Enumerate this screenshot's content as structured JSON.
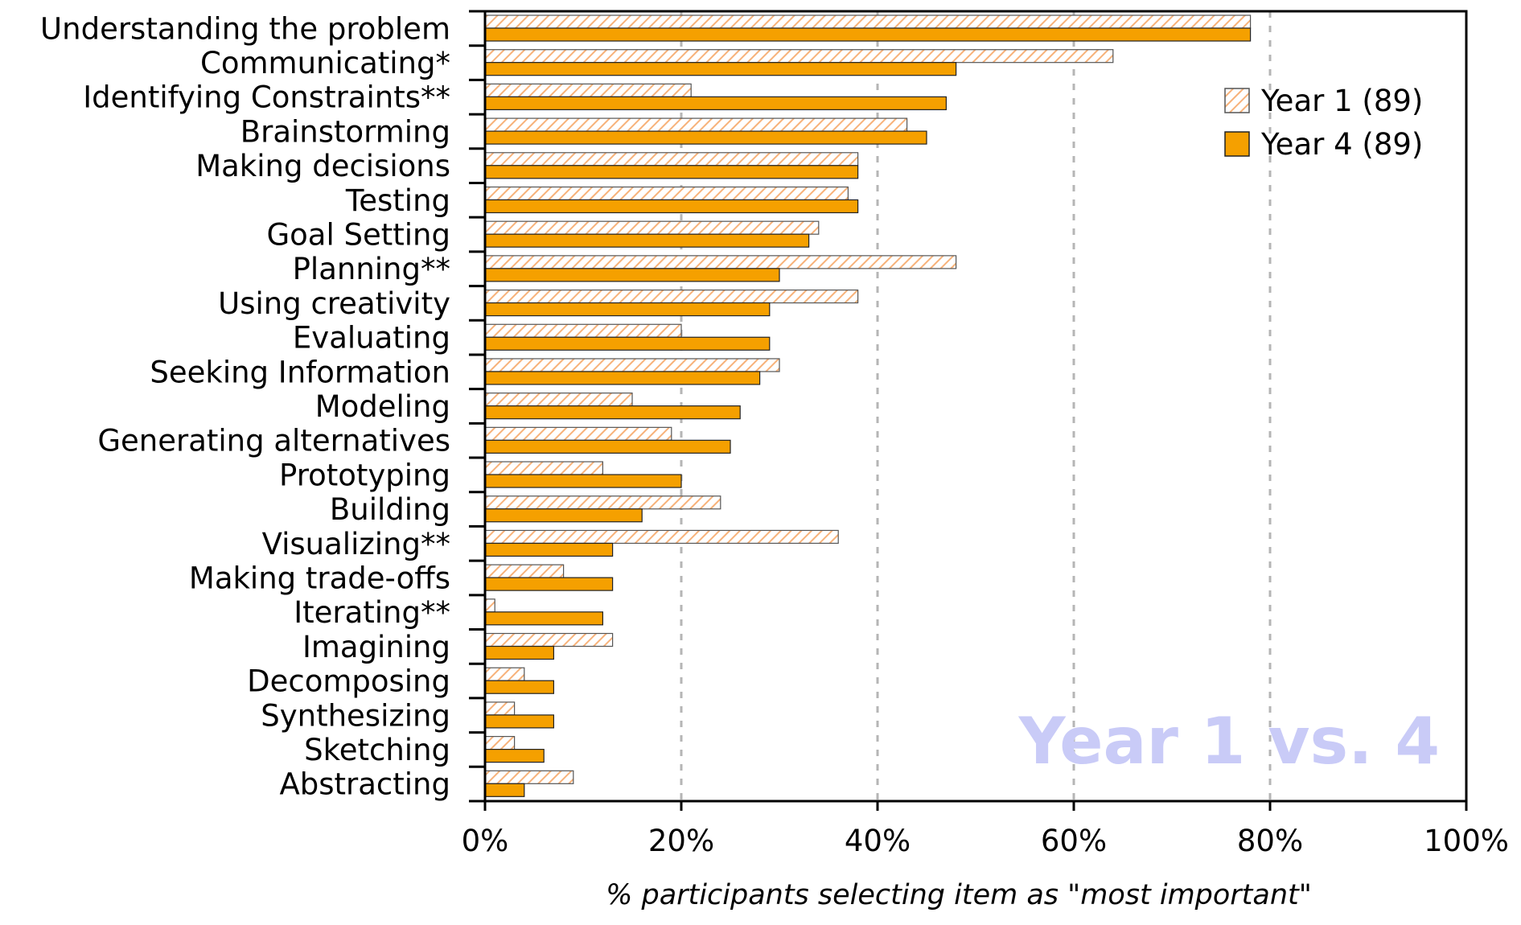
{
  "chart_data": {
    "type": "bar",
    "orientation": "horizontal",
    "categories": [
      "Understanding the problem",
      "Communicating*",
      "Identifying Constraints**",
      "Brainstorming",
      "Making decisions",
      "Testing",
      "Goal Setting",
      "Planning**",
      "Using creativity",
      "Evaluating",
      "Seeking Information",
      "Modeling",
      "Generating alternatives",
      "Prototyping",
      "Building",
      "Visualizing**",
      "Making trade-offs",
      "Iterating**",
      "Imagining",
      "Decomposing",
      "Synthesizing",
      "Sketching",
      "Abstracting"
    ],
    "series": [
      {
        "name": "Year 1 (89)",
        "color": "#f5a623",
        "pattern": "hatched",
        "values": [
          78,
          64,
          21,
          43,
          38,
          37,
          34,
          48,
          38,
          20,
          30,
          15,
          19,
          12,
          24,
          36,
          8,
          1,
          13,
          4,
          3,
          3,
          9
        ]
      },
      {
        "name": "Year 4 (89)",
        "color": "#f5a000",
        "pattern": "solid",
        "values": [
          78,
          48,
          47,
          45,
          38,
          38,
          33,
          30,
          29,
          29,
          28,
          26,
          25,
          20,
          16,
          13,
          13,
          12,
          7,
          7,
          7,
          6,
          4
        ]
      }
    ],
    "xlim": [
      0,
      100
    ],
    "xticks": [
      "0%",
      "20%",
      "40%",
      "60%",
      "80%",
      "100%"
    ],
    "xlabel": "% participants selecting item as \"most important\"",
    "ylabel": "",
    "grid": "vertical dashed",
    "legend_position": "top-right",
    "watermark": "Year 1 vs. 4"
  }
}
